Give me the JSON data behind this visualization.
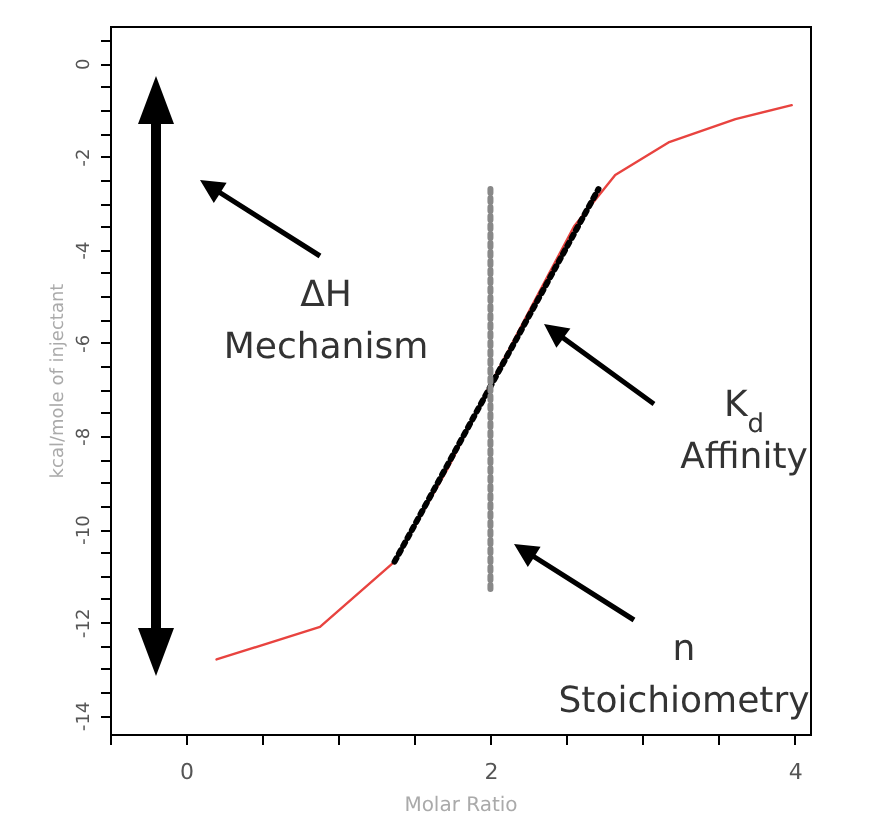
{
  "chart_data": {
    "type": "line",
    "xlabel": "Molar Ratio",
    "ylabel": "kcal/mole of injectant",
    "xlim": [
      -0.5,
      4.1
    ],
    "ylim": [
      -14.4,
      0.8
    ],
    "xticks": [
      {
        "value": -0.5,
        "label": null
      },
      0,
      {
        "value": 0.5,
        "label": null
      },
      {
        "value": 1,
        "label": null
      },
      {
        "value": 1.5,
        "label": null
      },
      2,
      {
        "value": 2.5,
        "label": null
      },
      {
        "value": 3,
        "label": null
      },
      {
        "value": 3.5,
        "label": null
      },
      4
    ],
    "yticks": [
      {
        "value": -14,
        "label": "-14"
      },
      {
        "value": -13.5,
        "label": null
      },
      {
        "value": -13,
        "label": null
      },
      {
        "value": -12.5,
        "label": null
      },
      {
        "value": -12,
        "label": "-12"
      },
      {
        "value": -11.5,
        "label": null
      },
      {
        "value": -11,
        "label": null
      },
      {
        "value": -10.5,
        "label": null
      },
      {
        "value": -10,
        "label": "-10"
      },
      {
        "value": -9.5,
        "label": null
      },
      {
        "value": -9,
        "label": null
      },
      {
        "value": -8.5,
        "label": null
      },
      {
        "value": -8,
        "label": "-8"
      },
      {
        "value": -7.5,
        "label": null
      },
      {
        "value": -7,
        "label": null
      },
      {
        "value": -6.5,
        "label": null
      },
      {
        "value": -6,
        "label": "-6"
      },
      {
        "value": -5.5,
        "label": null
      },
      {
        "value": -5,
        "label": null
      },
      {
        "value": -4.5,
        "label": null
      },
      {
        "value": -4,
        "label": "-4"
      },
      {
        "value": -3.5,
        "label": null
      },
      {
        "value": -3,
        "label": null
      },
      {
        "value": -2.5,
        "label": null
      },
      {
        "value": -2,
        "label": "-2"
      },
      {
        "value": -1.5,
        "label": null
      },
      {
        "value": -1,
        "label": null
      },
      {
        "value": -0.5,
        "label": null
      },
      0,
      {
        "value": 0.5,
        "label": null
      }
    ],
    "grid": false,
    "marker": "none",
    "series": [
      {
        "color": "#e8433f",
        "line_style": "solid",
        "x": [
          0.2,
          0.88,
          1.37,
          1.72,
          2.0,
          2.29,
          2.55,
          2.82,
          3.17,
          3.61,
          3.98
        ],
        "values": [
          -12.8,
          -12.1,
          -10.7,
          -8.7,
          -6.9,
          -5.1,
          -3.5,
          -2.4,
          -1.7,
          -1.2,
          -0.9
        ]
      },
      {
        "color": "#000000",
        "line_style": "dotted",
        "x": [
          1.37,
          2.71
        ],
        "values": [
          -10.7,
          -2.7
        ]
      },
      {
        "color": "#888888",
        "line_style": "dotted",
        "x": [
          2,
          2
        ],
        "values": [
          -2.7,
          -11.3
        ]
      }
    ],
    "annotations": [
      "ΔH\nMechanism",
      "K$_{d}$\nAffinity",
      "n\nStoichiometry"
    ]
  }
}
